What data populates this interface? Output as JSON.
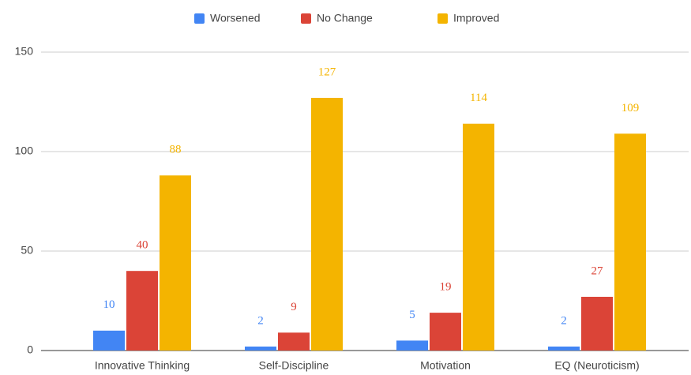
{
  "chart_data": {
    "type": "bar",
    "categories": [
      "Innovative Thinking",
      "Self-Discipline",
      "Motivation",
      "EQ (Neuroticism)"
    ],
    "series": [
      {
        "name": "Worsened",
        "color": "#4285f4",
        "values": [
          10,
          2,
          5,
          2
        ]
      },
      {
        "name": "No Change",
        "color": "#db4437",
        "values": [
          40,
          9,
          19,
          27
        ]
      },
      {
        "name": "Improved",
        "color": "#f4b400",
        "values": [
          88,
          127,
          114,
          109
        ]
      }
    ],
    "ylim": [
      0,
      150
    ],
    "yticks": [
      0,
      50,
      100,
      150
    ],
    "grid": true,
    "legend": "top"
  }
}
